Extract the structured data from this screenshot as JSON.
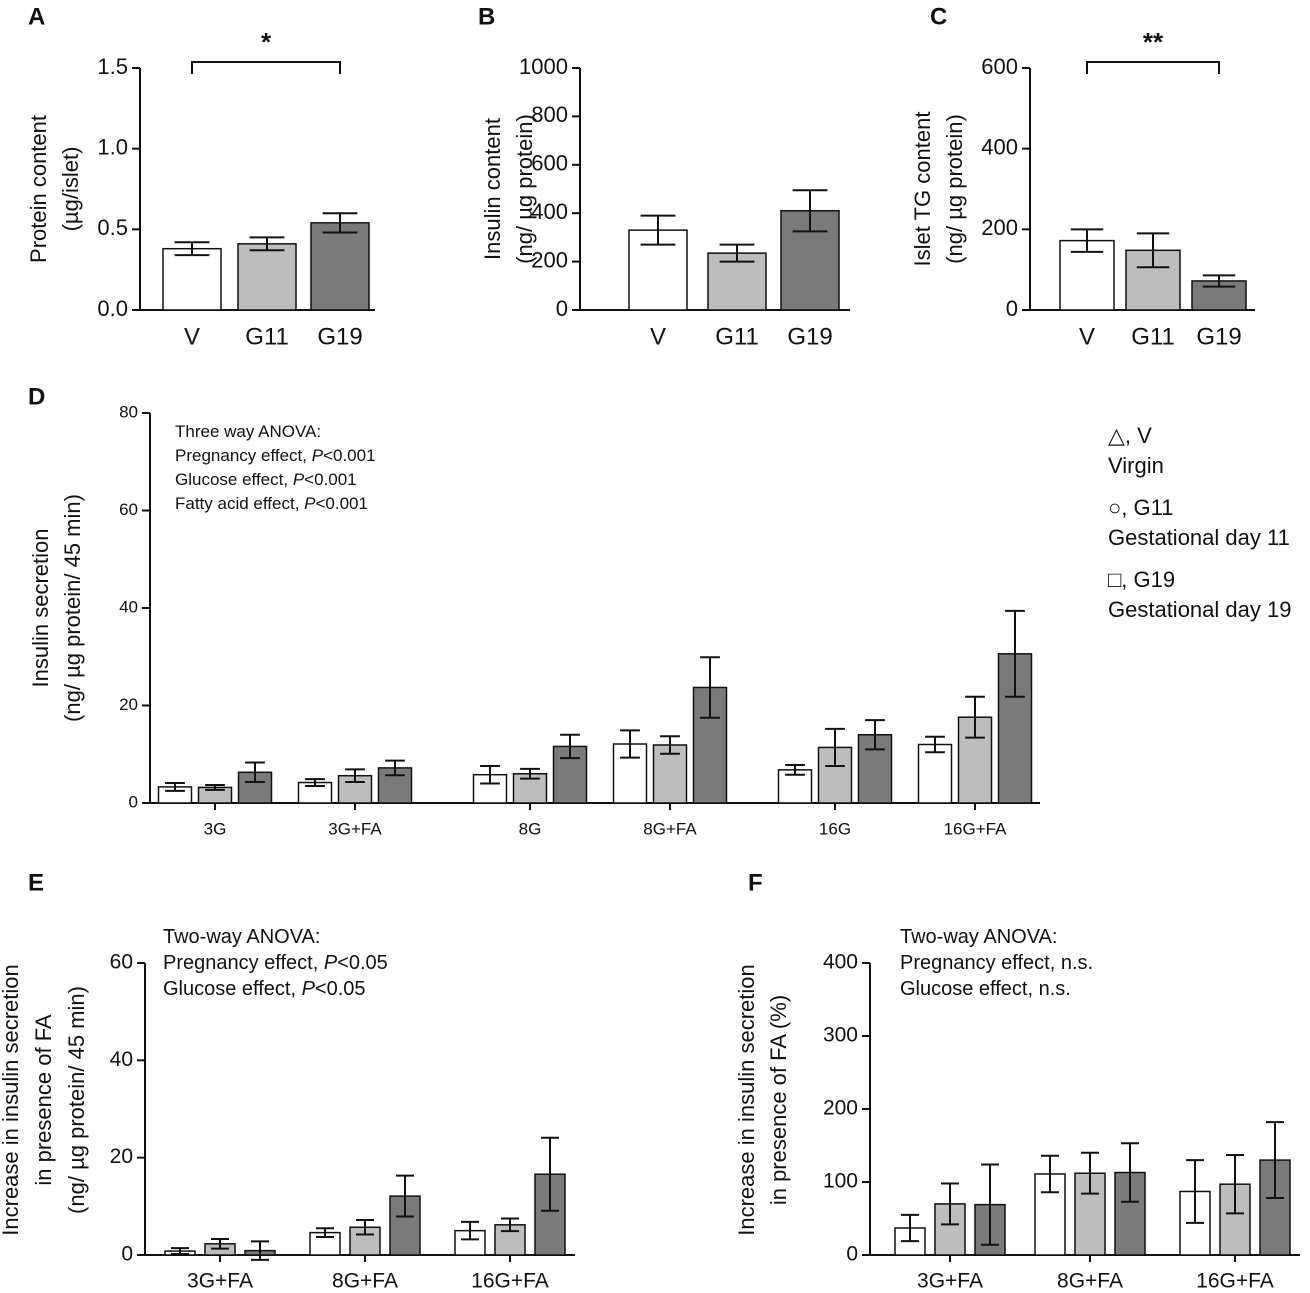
{
  "chart_data": [
    {
      "type": "bar",
      "panel": "A",
      "ylabel": [
        "Protein content",
        "(µg/islet)"
      ],
      "categories": [
        "V",
        "G11",
        "G19"
      ],
      "values": [
        0.38,
        0.41,
        0.54
      ],
      "errors": [
        0.04,
        0.04,
        0.06
      ],
      "colors": [
        "#ffffff",
        "#bdbdbd",
        "#7a7a7a"
      ],
      "ylim": [
        0,
        1.5
      ],
      "yticks": [
        {
          "value": 0,
          "label": "0.0"
        },
        0.5,
        {
          "value": 1,
          "label": "1.0"
        },
        1.5
      ],
      "significance": [
        {
          "from": 0,
          "to": 2,
          "label": "*"
        }
      ]
    },
    {
      "type": "bar",
      "panel": "B",
      "ylabel": [
        "Insulin content",
        "(ng/ µg protein)"
      ],
      "categories": [
        "V",
        "G11",
        "G19"
      ],
      "values": [
        330,
        235,
        410
      ],
      "errors": [
        60,
        35,
        85
      ],
      "colors": [
        "#ffffff",
        "#bdbdbd",
        "#7a7a7a"
      ],
      "ylim": [
        0,
        1000
      ],
      "yticks": [
        0,
        200,
        400,
        600,
        800,
        1000
      ]
    },
    {
      "type": "bar",
      "panel": "C",
      "ylabel": [
        "Islet TG content",
        "(ng/ µg protein)"
      ],
      "categories": [
        "V",
        "G11",
        "G19"
      ],
      "values": [
        172,
        148,
        72
      ],
      "errors": [
        28,
        42,
        14
      ],
      "colors": [
        "#ffffff",
        "#bdbdbd",
        "#7a7a7a"
      ],
      "ylim": [
        0,
        600
      ],
      "yticks": [
        0,
        200,
        400,
        600
      ],
      "significance": [
        {
          "from": 0,
          "to": 2,
          "label": "**"
        }
      ]
    },
    {
      "type": "bar",
      "panel": "D",
      "ylabel": [
        "Insulin secretion",
        "(ng/ µg protein/ 45 min)"
      ],
      "categories": [
        "3G",
        "3G+FA",
        "8G",
        "8G+FA",
        "16G",
        "16G+FA"
      ],
      "series": [
        {
          "name": "△, V",
          "description": "Virgin",
          "color": "#ffffff",
          "values": [
            3.3,
            4.2,
            5.8,
            12.1,
            6.8,
            12.0
          ],
          "errors": [
            0.8,
            0.7,
            1.8,
            2.8,
            1.0,
            1.6
          ]
        },
        {
          "name": "○, G11",
          "description": "Gestational day 11",
          "color": "#bdbdbd",
          "values": [
            3.2,
            5.6,
            6.0,
            11.9,
            11.4,
            17.6
          ],
          "errors": [
            0.5,
            1.3,
            1.0,
            1.8,
            3.8,
            4.2
          ]
        },
        {
          "name": "□, G19",
          "description": "Gestational day 19",
          "color": "#7a7a7a",
          "values": [
            6.3,
            7.2,
            11.6,
            23.7,
            14.0,
            30.6
          ],
          "errors": [
            2.0,
            1.5,
            2.4,
            6.2,
            3.0,
            8.8
          ]
        }
      ],
      "ylim": [
        0,
        80
      ],
      "yticks": [
        0,
        20,
        40,
        60,
        80
      ],
      "annotations": [
        [
          "Three way ANOVA:"
        ],
        [
          "Pregnancy effect, ",
          "P",
          "<0.001"
        ],
        [
          "Glucose effect, ",
          "P",
          "<0.001"
        ],
        [
          "Fatty acid effect, ",
          "P",
          "<0.001"
        ]
      ]
    },
    {
      "type": "bar",
      "panel": "E",
      "ylabel": [
        "Increase in insulin secretion",
        "in presence of FA",
        "(ng/ µg protein/ 45 min)"
      ],
      "categories": [
        "3G+FA",
        "8G+FA",
        "16G+FA"
      ],
      "series": [
        {
          "name": "V",
          "color": "#ffffff",
          "values": [
            0.8,
            4.6,
            5.0
          ],
          "errors": [
            0.6,
            0.9,
            1.8
          ]
        },
        {
          "name": "G11",
          "color": "#bdbdbd",
          "values": [
            2.3,
            5.7,
            6.2
          ],
          "errors": [
            1.0,
            1.5,
            1.3
          ]
        },
        {
          "name": "G19",
          "color": "#7a7a7a",
          "values": [
            0.9,
            12.1,
            16.6
          ],
          "errors": [
            1.9,
            4.2,
            7.5
          ]
        }
      ],
      "ylim": [
        0,
        60
      ],
      "yticks": [
        0,
        20,
        40,
        60
      ],
      "annotations": [
        [
          "Two-way ANOVA:"
        ],
        [
          "Pregnancy effect, ",
          "P",
          "<0.05"
        ],
        [
          "Glucose effect, ",
          "P",
          "<0.05"
        ]
      ]
    },
    {
      "type": "bar",
      "panel": "F",
      "ylabel": [
        "Increase in insulin secretion",
        "in presence of FA (%)"
      ],
      "categories": [
        "3G+FA",
        "8G+FA",
        "16G+FA"
      ],
      "series": [
        {
          "name": "V",
          "color": "#ffffff",
          "values": [
            37,
            111,
            87
          ],
          "errors": [
            18,
            25,
            43
          ]
        },
        {
          "name": "G11",
          "color": "#bdbdbd",
          "values": [
            70,
            112,
            97
          ],
          "errors": [
            28,
            28,
            40
          ]
        },
        {
          "name": "G19",
          "color": "#7a7a7a",
          "values": [
            69,
            113,
            130
          ],
          "errors": [
            55,
            40,
            52
          ]
        }
      ],
      "ylim": [
        0,
        400
      ],
      "yticks": [
        0,
        100,
        200,
        300,
        400
      ],
      "annotations": [
        [
          "Two-way ANOVA:"
        ],
        [
          "Pregnancy effect, n.s."
        ],
        [
          "Glucose effect, n.s."
        ]
      ]
    }
  ]
}
